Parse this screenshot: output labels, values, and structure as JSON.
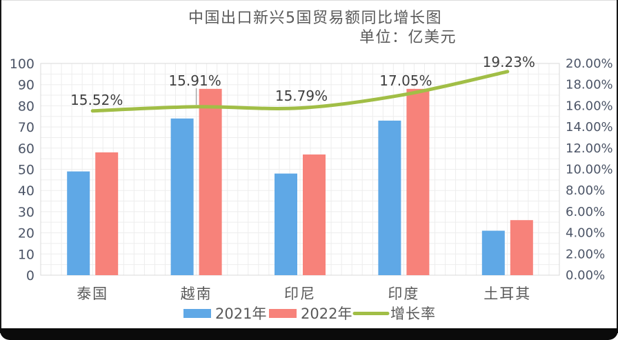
{
  "title": {
    "text": "中国出口新兴5国贸易额同比增长图",
    "unit": "单位：亿美元"
  },
  "chart_data": {
    "type": "combo-bar-line",
    "title": "中国出口新兴5国贸易额同比增长图",
    "unit_label": "单位：亿美元",
    "categories": [
      "泰国",
      "越南",
      "印尼",
      "印度",
      "土耳其"
    ],
    "series": [
      {
        "name": "2021年",
        "type": "bar",
        "axis": "left",
        "color": "#5FA8E6",
        "values": [
          49,
          74,
          48,
          73,
          21
        ]
      },
      {
        "name": "2022年",
        "type": "bar",
        "axis": "left",
        "color": "#F7827A",
        "values": [
          58,
          88,
          57,
          88,
          26
        ]
      },
      {
        "name": "增长率",
        "type": "line",
        "axis": "right",
        "color": "#A1BE46",
        "values": [
          15.52,
          15.91,
          15.79,
          17.05,
          19.23
        ],
        "labels": [
          "15.52%",
          "15.91%",
          "15.79%",
          "17.05%",
          "19.23%"
        ]
      }
    ],
    "left_axis": {
      "min": 0,
      "max": 100,
      "step": 10,
      "ticks": [
        "0",
        "10",
        "20",
        "30",
        "40",
        "50",
        "60",
        "70",
        "80",
        "90",
        "100"
      ]
    },
    "right_axis": {
      "min": 0,
      "max": 20,
      "step": 2,
      "ticks": [
        "0.00%",
        "2.00%",
        "4.00%",
        "6.00%",
        "8.00%",
        "10.00%",
        "12.00%",
        "14.00%",
        "16.00%",
        "18.00%",
        "20.00%"
      ]
    },
    "legend": {
      "position": "bottom",
      "items": [
        "2021年",
        "2022年",
        "增长率"
      ]
    },
    "grid": {
      "shown": true,
      "color": "#EDEDED"
    },
    "leader_line_color": "#A6A6A6",
    "text_colors": {
      "title": "#595959",
      "axis": "#4C5567",
      "category": "#595959",
      "data_label": "#3F3F3F",
      "legend": "#595959"
    }
  }
}
